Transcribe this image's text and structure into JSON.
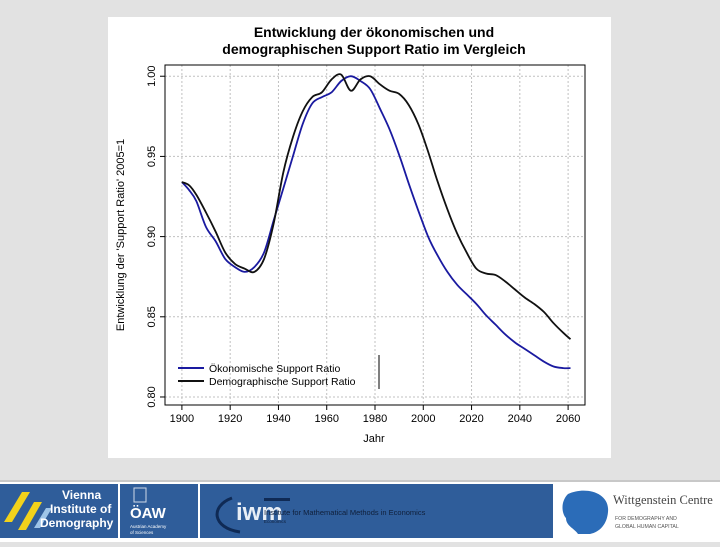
{
  "chart_data": {
    "type": "line",
    "title_line1": "Entwicklung der ökonomischen und",
    "title_line2": "demographischen Support Ratio im Vergleich",
    "xlabel": "Jahr",
    "ylabel": "Entwicklung der 'Support Ratio' 2005=1",
    "xlim": [
      1893,
      2067
    ],
    "ylim": [
      0.795,
      1.007
    ],
    "xticks": [
      1900,
      1920,
      1940,
      1960,
      1980,
      2000,
      2020,
      2040,
      2060
    ],
    "xtick_labels": [
      "1900",
      "1920",
      "1940",
      "1960",
      "1980",
      "2000",
      "2020",
      "2040",
      "2060"
    ],
    "yticks": [
      0.8,
      0.85,
      0.9,
      0.95,
      1.0
    ],
    "ytick_labels": [
      "0.80",
      "0.85",
      "0.90",
      "0.95",
      "1.00"
    ],
    "grid": true,
    "legend_position": "bottom-left",
    "series": [
      {
        "name": "Ökonomische Support Ratio",
        "color": "#1a1aa0",
        "x": [
          1900,
          1903,
          1906,
          1910,
          1914,
          1918,
          1922,
          1926,
          1930,
          1934,
          1938,
          1942,
          1946,
          1950,
          1954,
          1958,
          1962,
          1966,
          1970,
          1974,
          1978,
          1982,
          1986,
          1990,
          1994,
          1998,
          2002,
          2006,
          2010,
          2014,
          2018,
          2022,
          2026,
          2030,
          2034,
          2038,
          2042,
          2046,
          2050,
          2054,
          2058,
          2061
        ],
        "y": [
          0.934,
          0.929,
          0.922,
          0.906,
          0.897,
          0.886,
          0.881,
          0.878,
          0.881,
          0.89,
          0.91,
          0.93,
          0.95,
          0.97,
          0.983,
          0.987,
          0.99,
          0.997,
          1.0,
          0.997,
          0.992,
          0.98,
          0.967,
          0.951,
          0.933,
          0.916,
          0.9,
          0.888,
          0.878,
          0.87,
          0.864,
          0.858,
          0.851,
          0.845,
          0.839,
          0.834,
          0.83,
          0.826,
          0.822,
          0.819,
          0.818,
          0.818
        ]
      },
      {
        "name": "Demographische Support Ratio",
        "color": "#111111",
        "x": [
          1900,
          1903,
          1906,
          1910,
          1914,
          1918,
          1922,
          1926,
          1930,
          1934,
          1938,
          1942,
          1946,
          1950,
          1954,
          1958,
          1962,
          1966,
          1970,
          1974,
          1978,
          1982,
          1986,
          1990,
          1994,
          1998,
          2002,
          2006,
          2010,
          2014,
          2018,
          2022,
          2026,
          2030,
          2034,
          2038,
          2042,
          2046,
          2050,
          2054,
          2058,
          2061
        ],
        "y": [
          0.934,
          0.932,
          0.926,
          0.915,
          0.903,
          0.89,
          0.883,
          0.88,
          0.878,
          0.886,
          0.908,
          0.94,
          0.962,
          0.978,
          0.987,
          0.99,
          0.998,
          1.001,
          0.991,
          0.998,
          1.0,
          0.995,
          0.991,
          0.989,
          0.982,
          0.97,
          0.953,
          0.934,
          0.917,
          0.902,
          0.89,
          0.88,
          0.877,
          0.876,
          0.872,
          0.867,
          0.862,
          0.858,
          0.853,
          0.846,
          0.84,
          0.836
        ]
      }
    ]
  },
  "footer": {
    "vienna": {
      "line1": "Vienna",
      "line2": "Institute of",
      "line3": "Demography"
    },
    "oaw": {
      "title": "ÖAW",
      "caption_1": "Austrian Academy",
      "caption_2": "of Sciences"
    },
    "imw": {
      "mark": "iwm",
      "label": "Institute for Mathematical Methods in Economics",
      "sub": "Economics"
    },
    "wittgenstein": {
      "title": "Wittgenstein Centre",
      "sub1": "FOR DEMOGRAPHY AND",
      "sub2": "GLOBAL HUMAN CAPITAL"
    }
  }
}
